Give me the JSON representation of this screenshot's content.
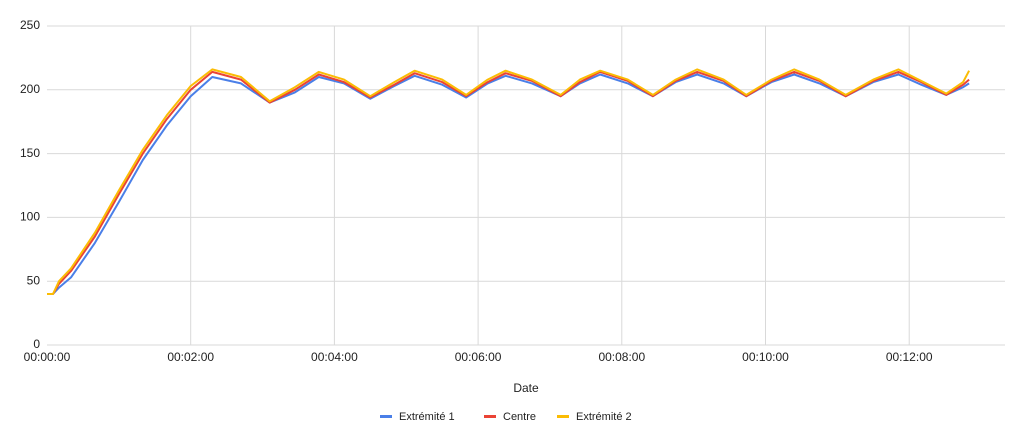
{
  "chart_data": {
    "type": "line",
    "x_label": "Date",
    "x": [
      0,
      5,
      10,
      20,
      40,
      60,
      80,
      100,
      120,
      138,
      162,
      186,
      207,
      227,
      248,
      270,
      290,
      307,
      330,
      350,
      368,
      383,
      405,
      429,
      445,
      462,
      485,
      506,
      525,
      543,
      565,
      584,
      605,
      624,
      645,
      667,
      690,
      711,
      730,
      751,
      765,
      770
    ],
    "series": [
      {
        "name": "Extrémité 1",
        "color": "#4a7fe8",
        "values": [
          40,
          40,
          45,
          53,
          80,
          112,
          145,
          172,
          195,
          210,
          205,
          190,
          198,
          210,
          205,
          193,
          203,
          211,
          204,
          194,
          205,
          211,
          205,
          195,
          205,
          212,
          205,
          195,
          206,
          212,
          205,
          195,
          206,
          212,
          205,
          195,
          206,
          212,
          204,
          196,
          202,
          205
        ]
      },
      {
        "name": "Centre",
        "color": "#ea4335",
        "values": [
          40,
          40,
          48,
          58,
          85,
          118,
          150,
          177,
          200,
          214,
          208,
          190,
          200,
          212,
          206,
          194,
          204,
          213,
          206,
          195,
          206,
          213,
          207,
          195,
          206,
          214,
          207,
          195,
          207,
          214,
          207,
          195,
          207,
          214,
          207,
          195,
          207,
          214,
          206,
          196,
          204,
          208
        ]
      },
      {
        "name": "Extrémité 2",
        "color": "#fbbc04",
        "values": [
          40,
          40,
          50,
          60,
          88,
          121,
          153,
          180,
          203,
          216,
          210,
          191,
          202,
          214,
          208,
          195,
          206,
          215,
          208,
          196,
          208,
          215,
          208,
          196,
          208,
          215,
          208,
          196,
          208,
          216,
          208,
          196,
          208,
          216,
          208,
          196,
          208,
          216,
          207,
          197,
          206,
          215
        ]
      }
    ],
    "xlim": [
      0,
      800
    ],
    "xticks": [
      {
        "value": 0,
        "label": "00:00:00"
      },
      {
        "value": 120,
        "label": "00:02:00"
      },
      {
        "value": 240,
        "label": "00:04:00"
      },
      {
        "value": 360,
        "label": "00:06:00"
      },
      {
        "value": 480,
        "label": "00:08:00"
      },
      {
        "value": 600,
        "label": "00:10:00"
      },
      {
        "value": 720,
        "label": "00:12:00"
      }
    ],
    "ylim": [
      0,
      250
    ],
    "yticks": [
      0,
      50,
      100,
      150,
      200,
      250
    ],
    "grid": true,
    "legend": "bottom"
  }
}
